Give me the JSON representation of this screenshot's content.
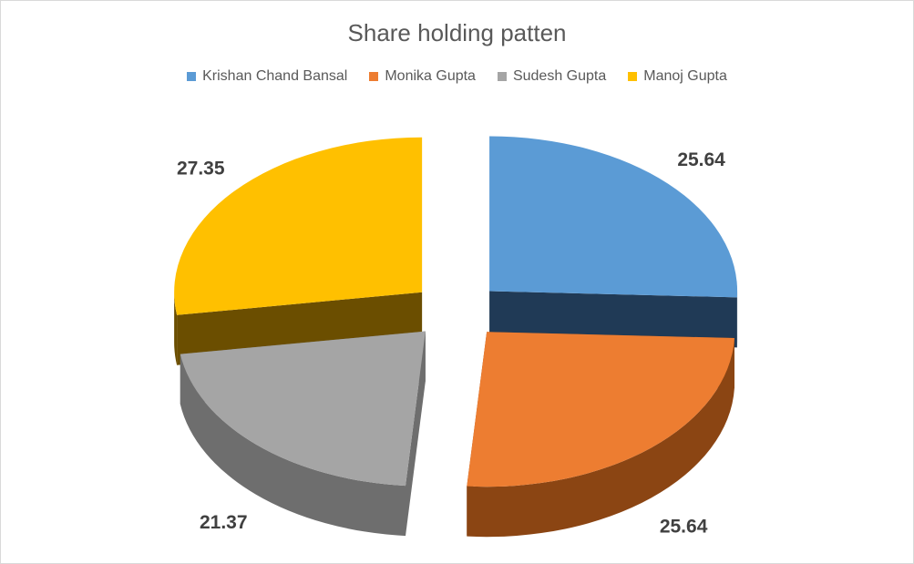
{
  "chart_data": {
    "type": "pie",
    "title": "Share holding patten",
    "legend_position": "top",
    "slices": [
      {
        "label": "Krishan Chand Bansal",
        "value": 25.64,
        "color": "#5B9BD5",
        "side": "#203A56"
      },
      {
        "label": "Monika Gupta",
        "value": 25.64,
        "color": "#ED7D31",
        "side": "#8B4513"
      },
      {
        "label": "Sudesh Gupta",
        "value": 21.37,
        "color": "#A5A5A5",
        "side": "#6E6E6E"
      },
      {
        "label": "Manoj Gupta",
        "value": 27.35,
        "color": "#FFC000",
        "side": "#6B4E00"
      }
    ]
  }
}
